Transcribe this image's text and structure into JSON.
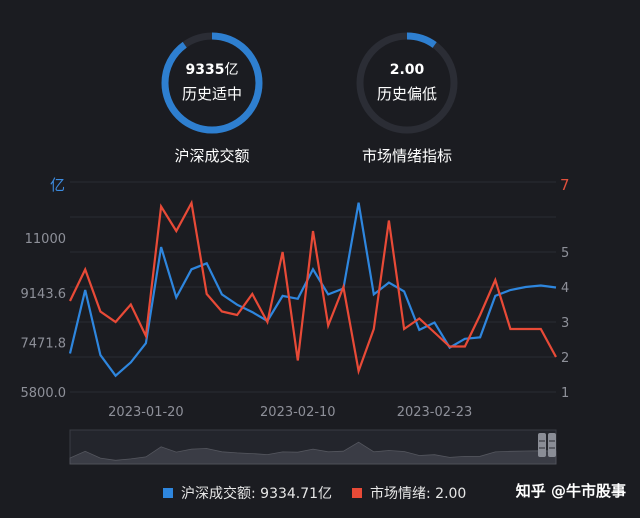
{
  "gauges": [
    {
      "value": "9335",
      "unit": "亿",
      "status": "历史适中",
      "caption": "沪深成交额",
      "fill_fraction": 0.9,
      "color": "#2e7fd0"
    },
    {
      "value": "2.00",
      "unit": "",
      "status": "历史偏低",
      "caption": "市场情绪指标",
      "fill_fraction": 0.1,
      "color": "#2e7fd0"
    }
  ],
  "chart_data": {
    "type": "line",
    "x": [
      "2023-01-13",
      "2023-01-16",
      "2023-01-17",
      "2023-01-18",
      "2023-01-19",
      "2023-01-20",
      "2023-01-30",
      "2023-01-31",
      "2023-02-01",
      "2023-02-02",
      "2023-02-03",
      "2023-02-06",
      "2023-02-07",
      "2023-02-08",
      "2023-02-09",
      "2023-02-10",
      "2023-02-13",
      "2023-02-14",
      "2023-02-15",
      "2023-02-16",
      "2023-02-17",
      "2023-02-20",
      "2023-02-21",
      "2023-02-22",
      "2023-02-23",
      "2023-02-24",
      "2023-02-27",
      "2023-02-28",
      "2023-03-01",
      "2023-03-02",
      "2023-03-03",
      "2023-03-06",
      "2023-03-07"
    ],
    "x_ticks": [
      "2023-01-20",
      "2023-02-10",
      "2023-02-23"
    ],
    "left_axis": {
      "unit": "亿",
      "ticks": [
        "11000",
        "9143.6",
        "7471.8",
        "5800.0"
      ],
      "ylim": [
        5800,
        12900
      ]
    },
    "right_axis": {
      "unit": "7",
      "ticks": [
        "5",
        "4",
        "3",
        "2",
        "1"
      ],
      "ylim": [
        1,
        7
      ]
    },
    "series": [
      {
        "name": "沪深成交额",
        "axis": "left",
        "color": "#2e86de",
        "values": [
          7100,
          9250,
          7050,
          6350,
          6800,
          7450,
          10700,
          9000,
          9950,
          10150,
          9100,
          8750,
          8500,
          8200,
          9050,
          8950,
          9950,
          9100,
          9300,
          12200,
          9100,
          9500,
          9200,
          7900,
          8150,
          7300,
          7600,
          7650,
          9050,
          9250,
          9350,
          9400,
          9334.71
        ]
      },
      {
        "name": "市场情绪",
        "axis": "right",
        "color": "#e84a37",
        "values": [
          3.6,
          4.5,
          3.3,
          3.0,
          3.5,
          2.6,
          6.3,
          5.6,
          6.4,
          3.8,
          3.3,
          3.2,
          3.8,
          3.0,
          5.0,
          1.9,
          5.6,
          2.9,
          4.0,
          1.6,
          2.8,
          5.9,
          2.8,
          3.1,
          2.7,
          2.3,
          2.3,
          3.2,
          4.2,
          2.8,
          2.8,
          2.8,
          2.0
        ]
      }
    ],
    "grid": true,
    "legend_position": "bottom"
  },
  "legend": [
    {
      "label": "沪深成交额: 9334.71亿",
      "color": "#2e86de"
    },
    {
      "label": "市场情绪: 2.00",
      "color": "#e84a37"
    }
  ],
  "watermark": "知乎 @牛市股事"
}
